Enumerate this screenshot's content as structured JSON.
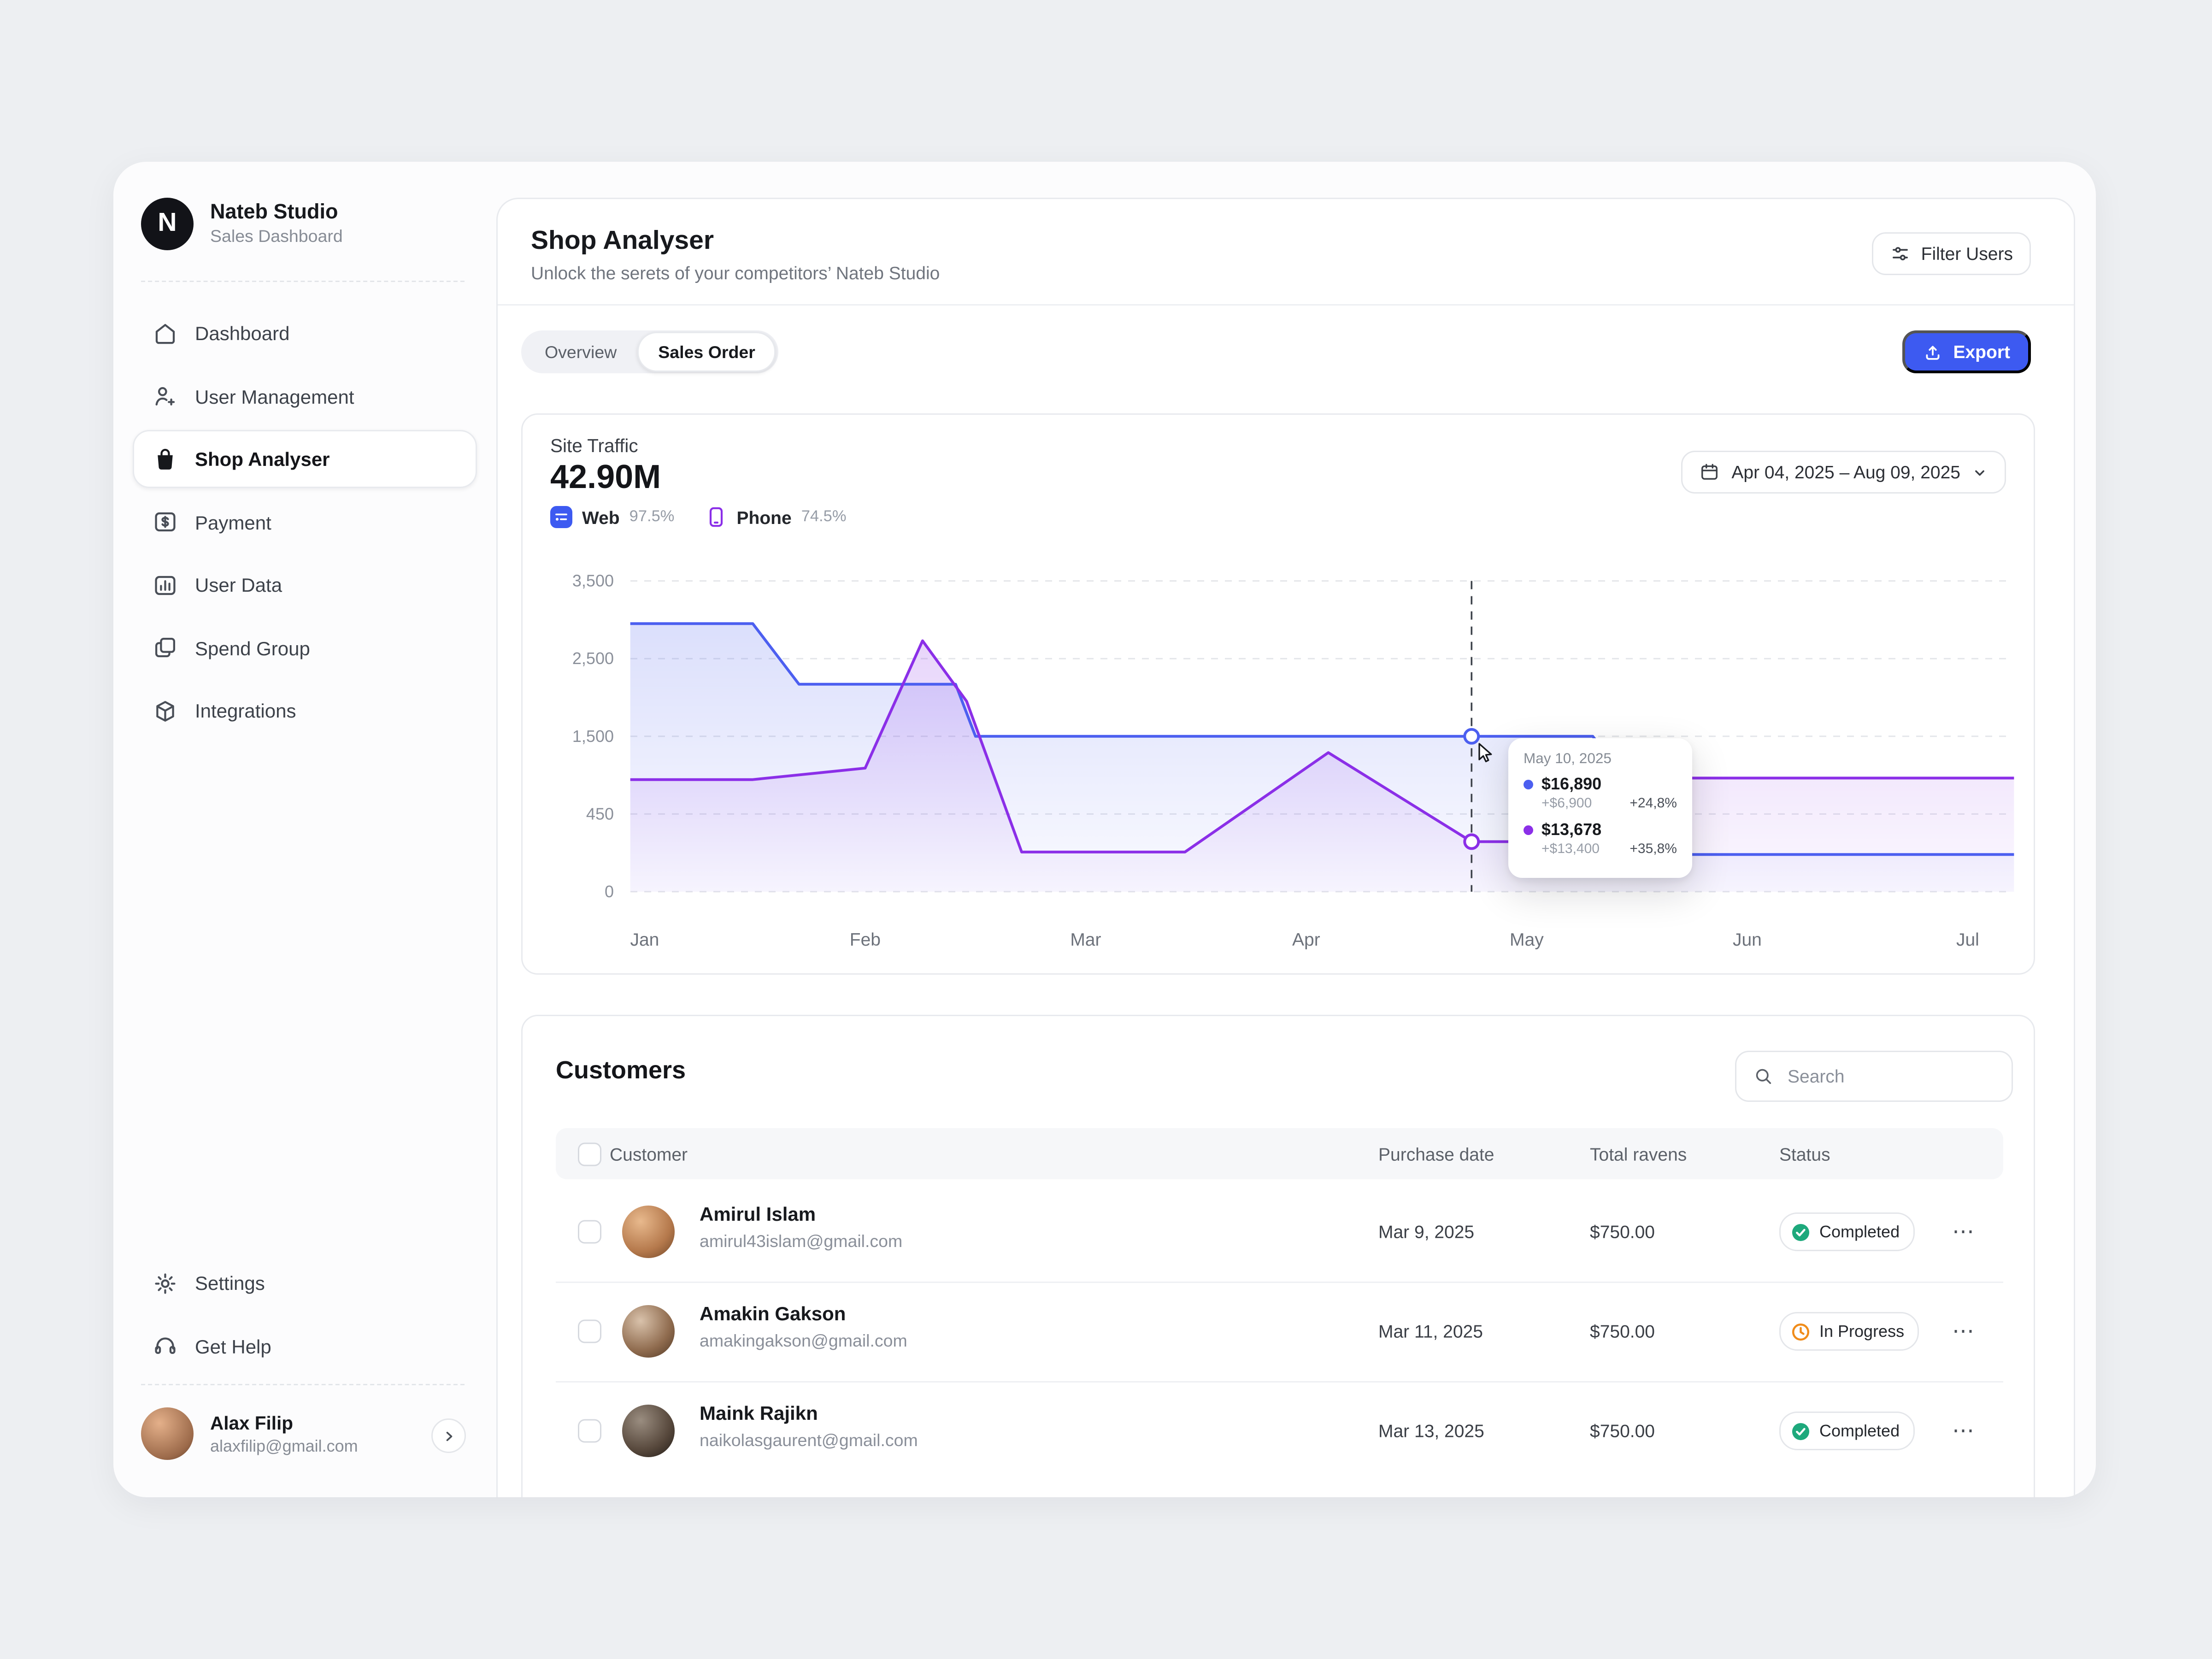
{
  "colors": {
    "accent": "#3d5af1",
    "web_series": "#4c5ff0",
    "phone_series": "#8b2fe8",
    "completed": "#1ea97c",
    "in_progress": "#f08c1a"
  },
  "sidebar": {
    "brand": {
      "logo_letter": "N",
      "name": "Nateb Studio",
      "subtitle": "Sales Dashboard"
    },
    "items": [
      {
        "label": "Dashboard"
      },
      {
        "label": "User Management"
      },
      {
        "label": "Shop Analyser"
      },
      {
        "label": "Payment"
      },
      {
        "label": "User Data"
      },
      {
        "label": "Spend Group"
      },
      {
        "label": "Integrations"
      }
    ],
    "footer_items": [
      {
        "label": "Settings"
      },
      {
        "label": "Get Help"
      }
    ],
    "profile": {
      "name": "Alax Filip",
      "email": "alaxfilip@gmail.com"
    }
  },
  "header": {
    "title": "Shop Analyser",
    "subtitle": "Unlock the serets of your competitors’ Nateb Studio",
    "filter_button": "Filter Users"
  },
  "tabs": [
    {
      "label": "Overview"
    },
    {
      "label": "Sales Order"
    }
  ],
  "export_label": "Export",
  "traffic": {
    "title": "Site Traffic",
    "value": "42.90M",
    "legend": [
      {
        "label": "Web",
        "percent": "97.5%"
      },
      {
        "label": "Phone",
        "percent": "74.5%"
      }
    ],
    "date_range": "Apr 04, 2025 – Aug 09, 2025",
    "tooltip": {
      "date": "May 10, 2025",
      "entries": [
        {
          "value": "$16,890",
          "delta": "+$6,900",
          "percent": "+24,8%"
        },
        {
          "value": "$13,678",
          "delta": "+$13,400",
          "percent": "+35,8%"
        }
      ]
    }
  },
  "chart_data": {
    "type": "area",
    "title": "Site Traffic",
    "total_label": "42.90M",
    "x_labels": [
      "Jan",
      "Feb",
      "Mar",
      "Apr",
      "May",
      "Jun",
      "Jul"
    ],
    "y_ticks": [
      0,
      450,
      1500,
      2500,
      3500
    ],
    "y_tick_labels": [
      "0",
      "450",
      "1,500",
      "2,500",
      "3,500"
    ],
    "grid": "dashed-horizontal",
    "legend_position": "top-left",
    "series": [
      {
        "name": "Web",
        "color": "#4c5ff0",
        "points": [
          [
            -0.065,
            2950
          ],
          [
            0.49,
            2950
          ],
          [
            0.7,
            2170
          ],
          [
            1.41,
            2170
          ],
          [
            1.5,
            1500
          ],
          [
            3.75,
            1500
          ],
          [
            4.3,
            1500
          ],
          [
            4.72,
            215
          ],
          [
            6.21,
            215
          ]
        ]
      },
      {
        "name": "Phone",
        "color": "#8b2fe8",
        "points": [
          [
            -0.065,
            915
          ],
          [
            0.49,
            915
          ],
          [
            1.0,
            1070
          ],
          [
            1.26,
            2730
          ],
          [
            1.46,
            1950
          ],
          [
            1.71,
            230
          ],
          [
            2.45,
            230
          ],
          [
            3.1,
            1280
          ],
          [
            3.75,
            290
          ],
          [
            4.3,
            290
          ],
          [
            4.72,
            935
          ],
          [
            6.21,
            935
          ]
        ]
      }
    ],
    "marker": {
      "x": 3.75,
      "series_values": [
        1500,
        290
      ]
    }
  },
  "customers": {
    "title": "Customers",
    "search_placeholder": "Search",
    "columns": {
      "customer": "Customer",
      "date": "Purchase date",
      "total": "Total ravens",
      "status": "Status"
    },
    "rows": [
      {
        "name": "Amirul Islam",
        "email": "amirul43islam@gmail.com",
        "date": "Mar 9, 2025",
        "total": "$750.00",
        "status": "Completed"
      },
      {
        "name": "Amakin Gakson",
        "email": "amakingakson@gmail.com",
        "date": "Mar 11, 2025",
        "total": "$750.00",
        "status": "In Progress"
      },
      {
        "name": "Maink Rajikn",
        "email": "naikolasgaurent@gmail.com",
        "date": "Mar 13, 2025",
        "total": "$750.00",
        "status": "Completed"
      }
    ],
    "more_glyph": "⋯"
  }
}
